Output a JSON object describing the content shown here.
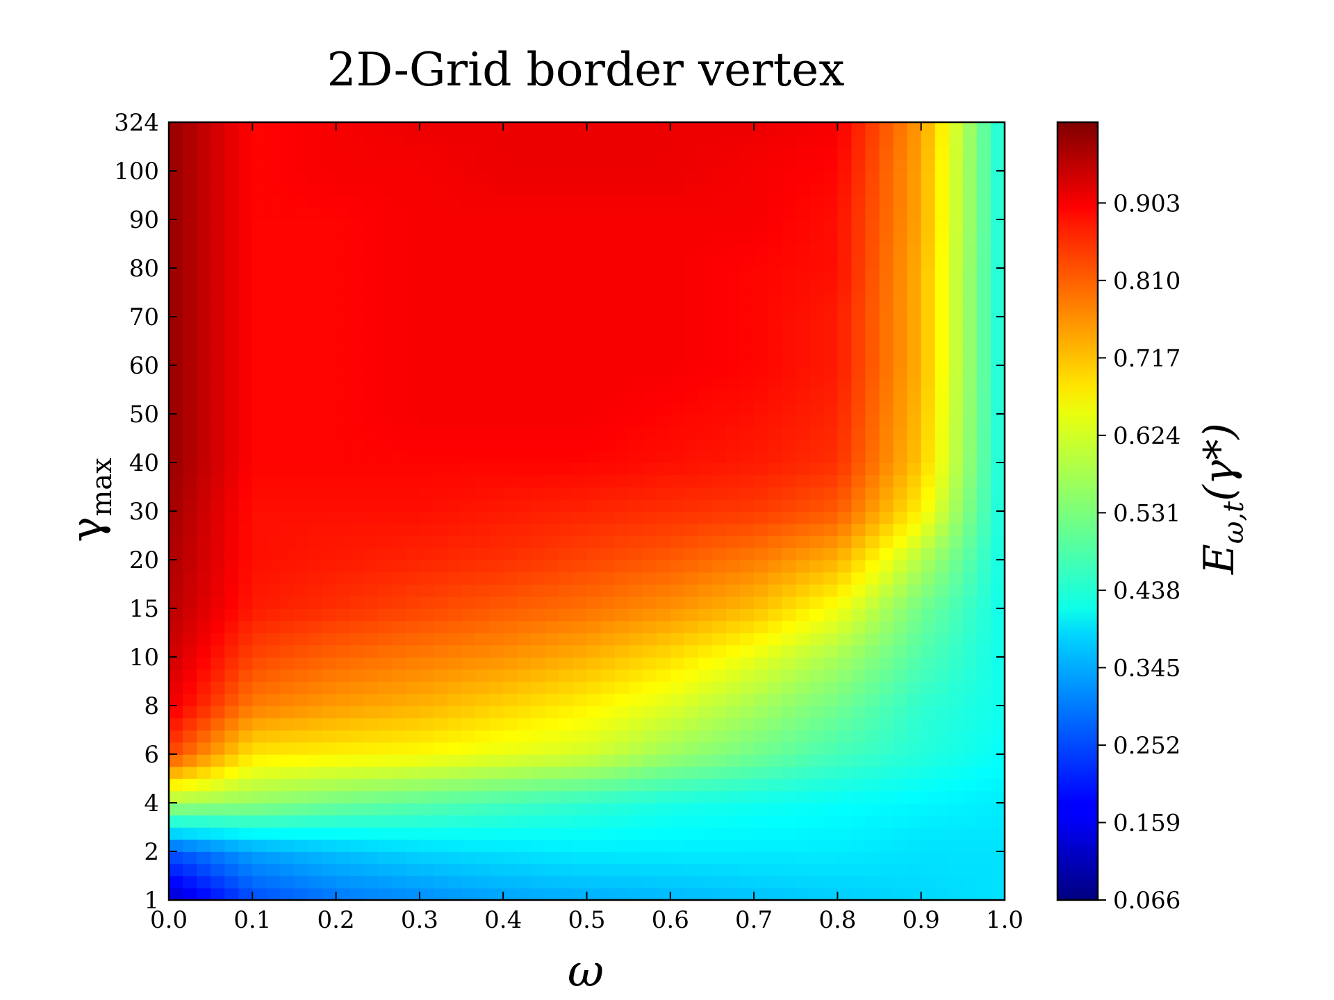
{
  "chart_data": {
    "type": "heatmap",
    "title": "2D-Grid border vertex",
    "xlabel": "ω",
    "ylabel_main": "γ",
    "ylabel_sub": "max",
    "colorbar_label_main": "E",
    "colorbar_label_sub": "ω,t",
    "colorbar_label_arg": "(γ*)",
    "colormap": "jet",
    "x_ticks": [
      "0.0",
      "0.1",
      "0.2",
      "0.3",
      "0.4",
      "0.5",
      "0.6",
      "0.7",
      "0.8",
      "0.9",
      "1.0"
    ],
    "y_ticks": [
      "1",
      "2",
      "4",
      "6",
      "8",
      "10",
      "15",
      "20",
      "30",
      "40",
      "50",
      "60",
      "70",
      "80",
      "90",
      "100",
      "324"
    ],
    "colorbar_ticks": [
      "0.066",
      "0.159",
      "0.252",
      "0.345",
      "0.438",
      "0.531",
      "0.624",
      "0.717",
      "0.810",
      "0.903"
    ],
    "value_range": [
      0.066,
      1.0
    ],
    "x": [
      0.0,
      0.1,
      0.2,
      0.3,
      0.4,
      0.5,
      0.6,
      0.7,
      0.8,
      0.9,
      1.0
    ],
    "y": [
      1,
      2,
      4,
      6,
      8,
      10,
      15,
      20,
      30,
      40,
      50,
      60,
      70,
      80,
      90,
      100,
      324
    ],
    "z": [
      [
        0.13,
        0.25,
        0.29,
        0.31,
        0.33,
        0.34,
        0.35,
        0.36,
        0.37,
        0.38,
        0.39
      ],
      [
        0.26,
        0.33,
        0.36,
        0.38,
        0.39,
        0.4,
        0.4,
        0.4,
        0.4,
        0.39,
        0.39
      ],
      [
        0.57,
        0.55,
        0.52,
        0.5,
        0.48,
        0.46,
        0.44,
        0.43,
        0.42,
        0.41,
        0.4
      ],
      [
        0.82,
        0.67,
        0.66,
        0.65,
        0.63,
        0.61,
        0.56,
        0.52,
        0.48,
        0.45,
        0.42
      ],
      [
        0.9,
        0.77,
        0.74,
        0.72,
        0.69,
        0.66,
        0.62,
        0.57,
        0.52,
        0.46,
        0.43
      ],
      [
        0.93,
        0.82,
        0.79,
        0.77,
        0.75,
        0.72,
        0.68,
        0.63,
        0.57,
        0.49,
        0.43
      ],
      [
        0.95,
        0.86,
        0.84,
        0.82,
        0.8,
        0.78,
        0.75,
        0.71,
        0.64,
        0.52,
        0.43
      ],
      [
        0.96,
        0.87,
        0.86,
        0.85,
        0.84,
        0.82,
        0.8,
        0.77,
        0.72,
        0.58,
        0.43
      ],
      [
        0.97,
        0.87,
        0.87,
        0.87,
        0.86,
        0.85,
        0.84,
        0.83,
        0.8,
        0.66,
        0.43
      ],
      [
        0.98,
        0.88,
        0.88,
        0.88,
        0.88,
        0.88,
        0.87,
        0.86,
        0.84,
        0.7,
        0.43
      ],
      [
        0.98,
        0.88,
        0.88,
        0.89,
        0.89,
        0.89,
        0.88,
        0.87,
        0.85,
        0.71,
        0.43
      ],
      [
        0.98,
        0.88,
        0.88,
        0.89,
        0.89,
        0.89,
        0.89,
        0.88,
        0.86,
        0.72,
        0.43
      ],
      [
        0.98,
        0.88,
        0.88,
        0.89,
        0.89,
        0.89,
        0.89,
        0.88,
        0.86,
        0.72,
        0.43
      ],
      [
        0.98,
        0.88,
        0.88,
        0.89,
        0.89,
        0.89,
        0.89,
        0.88,
        0.87,
        0.72,
        0.43
      ],
      [
        0.98,
        0.88,
        0.88,
        0.89,
        0.89,
        0.89,
        0.89,
        0.89,
        0.87,
        0.73,
        0.43
      ],
      [
        0.98,
        0.88,
        0.89,
        0.89,
        0.9,
        0.9,
        0.9,
        0.89,
        0.88,
        0.73,
        0.43
      ],
      [
        0.98,
        0.88,
        0.89,
        0.9,
        0.9,
        0.9,
        0.9,
        0.9,
        0.89,
        0.74,
        0.43
      ]
    ],
    "grid": false,
    "legend": "none"
  }
}
